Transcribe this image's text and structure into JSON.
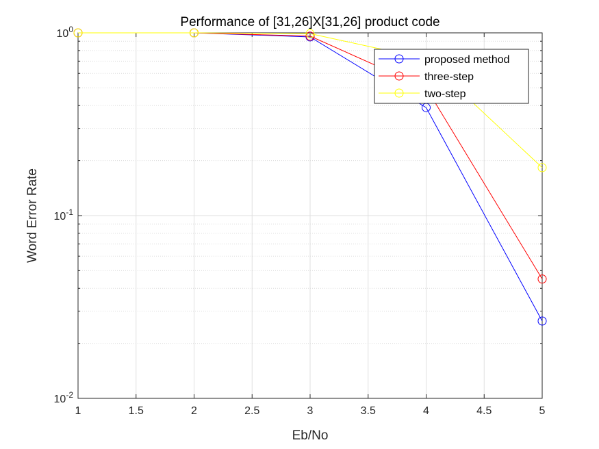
{
  "chart_data": {
    "type": "line",
    "title": "Performance of [31,26]X[31,26] product code",
    "xlabel": "Eb/No",
    "ylabel": "Word Error Rate",
    "x": [
      1,
      2,
      3,
      4,
      5
    ],
    "xlim": [
      1,
      5
    ],
    "ylim": [
      0.01,
      1
    ],
    "yscale": "log",
    "grid": true,
    "legend_position": "top-right",
    "x_ticks": [
      "1",
      "1.5",
      "2",
      "2.5",
      "3",
      "3.5",
      "4",
      "4.5",
      "5"
    ],
    "y_ticks": [
      {
        "base": "10",
        "exp": "0",
        "value": 1
      },
      {
        "base": "10",
        "exp": "-1",
        "value": 0.1
      },
      {
        "base": "10",
        "exp": "-2",
        "value": 0.01
      }
    ],
    "series": [
      {
        "name": "proposed method",
        "color": "#0000ff",
        "marker": "circle",
        "values": [
          1.0,
          1.0,
          0.95,
          0.39,
          0.0265
        ]
      },
      {
        "name": "three-step",
        "color": "#ff0000",
        "marker": "circle",
        "values": [
          1.0,
          1.0,
          0.96,
          0.5,
          0.045
        ]
      },
      {
        "name": "two-step",
        "color": "#ffff00",
        "marker": "circle",
        "values": [
          1.0,
          1.0,
          0.99,
          0.72,
          0.183
        ]
      }
    ]
  }
}
